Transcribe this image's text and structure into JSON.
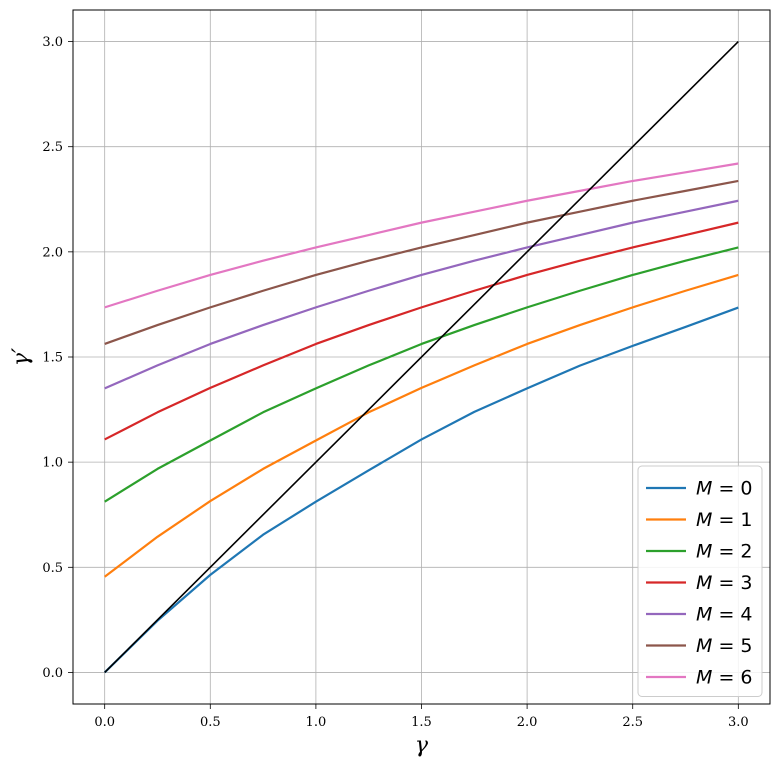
{
  "chart_data": {
    "type": "line",
    "title": "",
    "xlabel": "γ",
    "ylabel": "γ′",
    "xlim": [
      -0.15,
      3.15
    ],
    "ylim": [
      -0.15,
      3.15
    ],
    "xticks": [
      0.0,
      0.5,
      1.0,
      1.5,
      2.0,
      2.5,
      3.0
    ],
    "yticks": [
      0.0,
      0.5,
      1.0,
      1.5,
      2.0,
      2.5,
      3.0
    ],
    "xtick_labels": [
      "0.0",
      "0.5",
      "1.0",
      "1.5",
      "2.0",
      "2.5",
      "3.0"
    ],
    "ytick_labels": [
      "0.0",
      "0.5",
      "1.0",
      "1.5",
      "2.0",
      "2.5",
      "3.0"
    ],
    "grid": true,
    "legend_position": "bottom-right",
    "x": [
      0.0,
      0.25,
      0.5,
      0.75,
      1.0,
      1.25,
      1.5,
      1.75,
      2.0,
      2.25,
      2.5,
      2.75,
      3.0
    ],
    "series": [
      {
        "name": "M = 0",
        "label": "M",
        "suffix": " = 0",
        "color": "#1f77b4",
        "values": [
          0.0,
          0.246,
          0.464,
          0.655,
          0.812,
          0.961,
          1.108,
          1.239,
          1.351,
          1.459,
          1.553,
          1.643,
          1.735
        ]
      },
      {
        "name": "M = 1",
        "label": "M",
        "suffix": " = 1",
        "color": "#ff7f0e",
        "values": [
          0.455,
          0.645,
          0.815,
          0.968,
          1.103,
          1.237,
          1.353,
          1.46,
          1.562,
          1.652,
          1.736,
          1.815,
          1.89
        ]
      },
      {
        "name": "M = 2",
        "label": "M",
        "suffix": " = 2",
        "color": "#2ca02c",
        "values": [
          0.812,
          0.968,
          1.103,
          1.237,
          1.351,
          1.46,
          1.562,
          1.652,
          1.736,
          1.815,
          1.89,
          1.958,
          2.021
        ]
      },
      {
        "name": "M = 3",
        "label": "M",
        "suffix": " = 3",
        "color": "#d62728",
        "values": [
          1.108,
          1.237,
          1.353,
          1.46,
          1.562,
          1.652,
          1.736,
          1.815,
          1.89,
          1.958,
          2.021,
          2.08,
          2.139
        ]
      },
      {
        "name": "M = 4",
        "label": "M",
        "suffix": " = 4",
        "color": "#9467bd",
        "values": [
          1.351,
          1.46,
          1.562,
          1.652,
          1.736,
          1.815,
          1.89,
          1.958,
          2.021,
          2.08,
          2.139,
          2.191,
          2.243
        ]
      },
      {
        "name": "M = 5",
        "label": "M",
        "suffix": " = 5",
        "color": "#8c564b",
        "values": [
          1.562,
          1.652,
          1.736,
          1.815,
          1.89,
          1.958,
          2.021,
          2.08,
          2.139,
          2.191,
          2.243,
          2.29,
          2.337
        ]
      },
      {
        "name": "M = 6",
        "label": "M",
        "suffix": " = 6",
        "color": "#e377c2",
        "values": [
          1.736,
          1.815,
          1.89,
          1.958,
          2.021,
          2.08,
          2.139,
          2.191,
          2.243,
          2.29,
          2.337,
          2.378,
          2.42
        ]
      }
    ],
    "reference_line": {
      "color": "#000000",
      "x": [
        0.0,
        3.0
      ],
      "y": [
        0.0,
        3.0
      ]
    }
  }
}
